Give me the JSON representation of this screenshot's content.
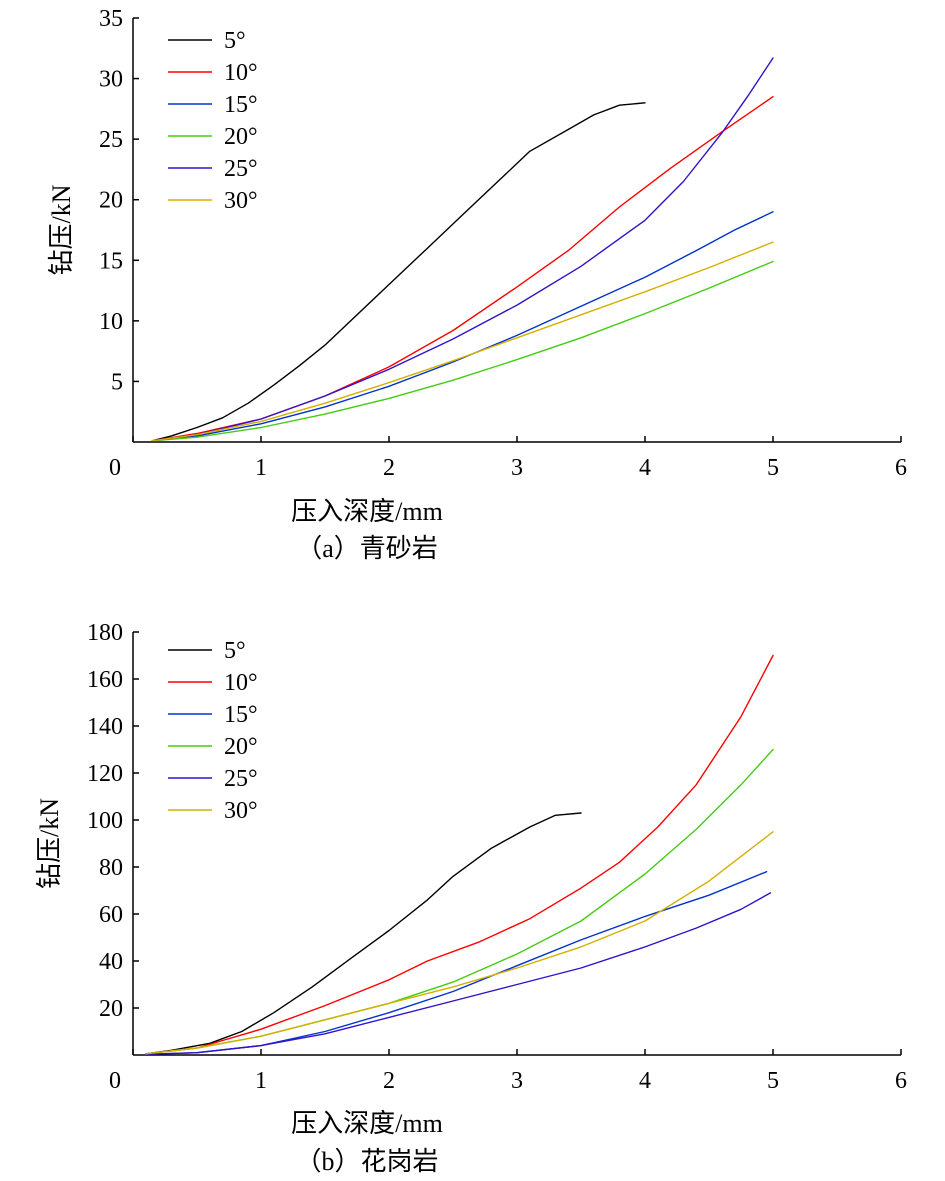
{
  "chart_data": [
    {
      "type": "line",
      "caption": "（a）青砂岩",
      "xlabel": "压入深度/mm",
      "ylabel": "钻压/kN",
      "xlim": [
        0,
        6
      ],
      "ylim": [
        0,
        35
      ],
      "xticks": [
        0,
        1,
        2,
        3,
        4,
        5,
        6
      ],
      "yticks": [
        5,
        10,
        15,
        20,
        25,
        30,
        35
      ],
      "legend_position": "top-left",
      "series": [
        {
          "name": "5°",
          "color": "#000000",
          "x": [
            0.15,
            0.3,
            0.5,
            0.7,
            0.9,
            1.1,
            1.3,
            1.5,
            1.7,
            2.0,
            2.3,
            2.6,
            2.9,
            3.1,
            3.4,
            3.6,
            3.8,
            4.0
          ],
          "y": [
            0.1,
            0.5,
            1.2,
            2.0,
            3.2,
            4.7,
            6.3,
            8.0,
            10.0,
            13.0,
            16.0,
            19.0,
            22.0,
            24.0,
            25.8,
            27.0,
            27.8,
            28.0
          ]
        },
        {
          "name": "10°",
          "color": "#ff0000",
          "x": [
            0.15,
            0.5,
            1.0,
            1.5,
            2.0,
            2.5,
            3.0,
            3.4,
            3.8,
            4.2,
            4.6,
            5.0
          ],
          "y": [
            0.1,
            0.7,
            1.9,
            3.8,
            6.2,
            9.2,
            12.8,
            15.8,
            19.4,
            22.6,
            25.6,
            28.5
          ]
        },
        {
          "name": "15°",
          "color": "#0033cc",
          "x": [
            0.15,
            0.5,
            1.0,
            1.5,
            2.0,
            2.5,
            3.0,
            3.5,
            4.0,
            4.4,
            4.7,
            5.0
          ],
          "y": [
            0.1,
            0.5,
            1.5,
            2.9,
            4.6,
            6.6,
            8.8,
            11.2,
            13.6,
            15.8,
            17.5,
            19.0
          ]
        },
        {
          "name": "20°",
          "color": "#44cc11",
          "x": [
            0.15,
            0.5,
            1.0,
            1.5,
            2.0,
            2.5,
            3.0,
            3.5,
            4.0,
            4.5,
            5.0
          ],
          "y": [
            0.1,
            0.4,
            1.2,
            2.3,
            3.6,
            5.1,
            6.8,
            8.6,
            10.6,
            12.7,
            14.9
          ]
        },
        {
          "name": "25°",
          "color": "#3311cc",
          "x": [
            0.15,
            0.5,
            1.0,
            1.5,
            2.0,
            2.5,
            3.0,
            3.5,
            4.0,
            4.3,
            4.6,
            4.8,
            5.0
          ],
          "y": [
            0.1,
            0.6,
            1.9,
            3.8,
            6.0,
            8.5,
            11.3,
            14.5,
            18.3,
            21.5,
            25.5,
            28.5,
            31.7
          ]
        },
        {
          "name": "30°",
          "color": "#d4b000",
          "x": [
            0.15,
            0.5,
            1.0,
            1.5,
            2.0,
            2.5,
            3.0,
            3.5,
            4.0,
            4.5,
            5.0
          ],
          "y": [
            0.1,
            0.6,
            1.7,
            3.2,
            4.9,
            6.7,
            8.6,
            10.5,
            12.4,
            14.4,
            16.5
          ]
        }
      ]
    },
    {
      "type": "line",
      "caption": "（b）花岗岩",
      "xlabel": "压入深度/mm",
      "ylabel": "钻压/kN",
      "xlim": [
        0,
        6
      ],
      "ylim": [
        0,
        180
      ],
      "xticks": [
        0,
        1,
        2,
        3,
        4,
        5,
        6
      ],
      "yticks": [
        20,
        40,
        60,
        80,
        100,
        120,
        140,
        160,
        180
      ],
      "legend_position": "top-left",
      "series": [
        {
          "name": "5°",
          "color": "#000000",
          "x": [
            0.1,
            0.3,
            0.6,
            0.85,
            1.1,
            1.4,
            1.7,
            2.0,
            2.3,
            2.5,
            2.8,
            3.1,
            3.3,
            3.5
          ],
          "y": [
            0.5,
            2.0,
            5.0,
            10.0,
            18.0,
            29.0,
            41.0,
            53.0,
            66.0,
            76.0,
            88.0,
            97.0,
            102.0,
            103.0
          ]
        },
        {
          "name": "10°",
          "color": "#ff0000",
          "x": [
            0.1,
            0.5,
            1.0,
            1.5,
            2.0,
            2.3,
            2.7,
            3.1,
            3.5,
            3.8,
            4.1,
            4.4,
            4.75,
            5.0
          ],
          "y": [
            0.5,
            3.0,
            11.0,
            21.0,
            32.0,
            40.0,
            48.0,
            58.0,
            71.0,
            82.0,
            97.0,
            115.0,
            144.0,
            170.0
          ]
        },
        {
          "name": "15°",
          "color": "#0033cc",
          "x": [
            0.1,
            0.5,
            1.0,
            1.5,
            2.0,
            2.5,
            3.0,
            3.5,
            4.0,
            4.5,
            4.95
          ],
          "y": [
            0.3,
            1.0,
            4.0,
            10.0,
            18.0,
            27.0,
            38.0,
            49.0,
            59.0,
            68.0,
            78.0
          ]
        },
        {
          "name": "20°",
          "color": "#44cc11",
          "x": [
            0.1,
            0.5,
            1.0,
            1.5,
            2.0,
            2.5,
            3.0,
            3.5,
            4.0,
            4.4,
            4.75,
            5.0
          ],
          "y": [
            0.5,
            3.0,
            8.0,
            15.0,
            22.0,
            31.0,
            43.0,
            57.0,
            77.0,
            96.0,
            115.0,
            130.0
          ]
        },
        {
          "name": "25°",
          "color": "#3311cc",
          "x": [
            0.1,
            0.5,
            1.0,
            1.5,
            2.0,
            2.5,
            3.0,
            3.5,
            4.0,
            4.4,
            4.75,
            4.98
          ],
          "y": [
            0.3,
            1.0,
            4.0,
            9.0,
            16.0,
            23.0,
            30.0,
            37.0,
            46.0,
            54.0,
            62.0,
            69.0
          ]
        },
        {
          "name": "30°",
          "color": "#d4b000",
          "x": [
            0.1,
            0.5,
            1.0,
            1.5,
            2.0,
            2.5,
            3.0,
            3.5,
            4.0,
            4.5,
            5.0
          ],
          "y": [
            0.5,
            3.0,
            8.0,
            15.0,
            22.0,
            29.0,
            37.0,
            46.0,
            57.0,
            74.0,
            95.0
          ]
        }
      ]
    }
  ]
}
